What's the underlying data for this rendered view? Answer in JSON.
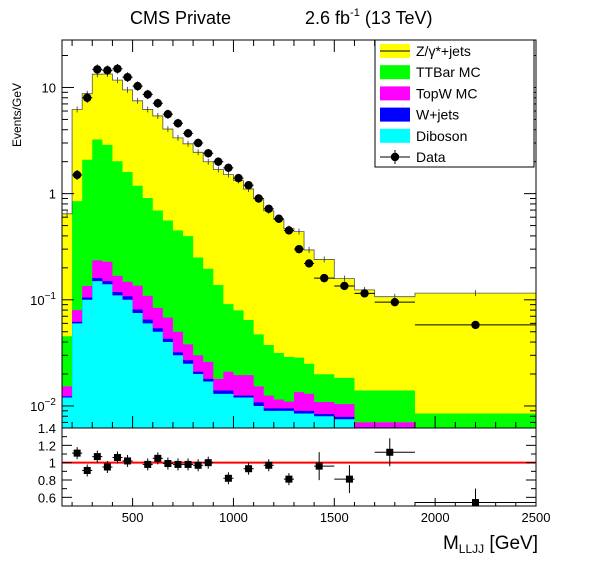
{
  "chart_data": {
    "type": "histogram-stack-with-ratio",
    "title": {
      "left": "CMS Private",
      "lumi_value": "2.6 fb",
      "lumi_exp": "-1",
      "energy": " (13 TeV)"
    },
    "ylabel": "Events/GeV",
    "xlabel": {
      "main": "M",
      "sub": "LLJJ",
      "unit": " [GeV]"
    },
    "x_range": [
      150,
      2500
    ],
    "x_ticks": [
      500,
      1000,
      1500,
      2000,
      2500
    ],
    "y_log_range": [
      0.0062,
      28
    ],
    "y_ticks": [
      {
        "value": 10,
        "label": "10"
      },
      {
        "value": 1,
        "label": "1"
      },
      {
        "value": 0.1,
        "label": "10",
        "exp": "−1"
      },
      {
        "value": 0.01,
        "label": "10",
        "exp": "−2"
      }
    ],
    "bin_edges": [
      150,
      200,
      250,
      300,
      350,
      400,
      450,
      500,
      550,
      600,
      650,
      700,
      750,
      800,
      850,
      900,
      950,
      1000,
      1050,
      1100,
      1150,
      1200,
      1250,
      1300,
      1350,
      1400,
      1500,
      1600,
      1700,
      1900,
      2500
    ],
    "stack_order_bottom_to_top": [
      "Diboson",
      "W+jets",
      "TopW MC",
      "TTBar MC",
      "Z/γ*+jets"
    ],
    "series": [
      {
        "name": "Diboson",
        "color": "#00ffff",
        "values": [
          0.012,
          0.06,
          0.1,
          0.15,
          0.14,
          0.11,
          0.1,
          0.075,
          0.06,
          0.05,
          0.04,
          0.03,
          0.025,
          0.02,
          0.017,
          0.013,
          0.013,
          0.012,
          0.012,
          0.01,
          0.009,
          0.009,
          0.009,
          0.0085,
          0.0085,
          0.008,
          0.0075,
          0.006,
          0.006,
          0.005
        ]
      },
      {
        "name": "W+jets",
        "color": "#0000ff",
        "values": [
          0.0003,
          0.002,
          0.005,
          0.01,
          0.01,
          0.008,
          0.008,
          0.006,
          0.005,
          0.004,
          0.003,
          0.002,
          0.002,
          0.001,
          0.001,
          0.001,
          0.001,
          0.0005,
          0.0005,
          0.0008,
          0.0005,
          0.0005,
          0.0005,
          0.0005,
          0.0005,
          0.0004,
          0.0004,
          0.0003,
          0.0003,
          0.0002
        ]
      },
      {
        "name": "TopW MC",
        "color": "#ff00ff",
        "values": [
          0.003,
          0.018,
          0.03,
          0.075,
          0.078,
          0.05,
          0.04,
          0.055,
          0.044,
          0.03,
          0.025,
          0.018,
          0.011,
          0.009,
          0.008,
          0.004,
          0.007,
          0.007,
          0.007,
          0.0045,
          0.003,
          0.002,
          0.0015,
          0.0045,
          0.004,
          0.0025,
          0.0025,
          0.0007,
          0.0007,
          0.0003
        ]
      },
      {
        "name": "TTBar MC",
        "color": "#00ff00",
        "values": [
          0.03,
          0.77,
          1.95,
          3.0,
          2.65,
          1.85,
          1.45,
          1.05,
          0.8,
          0.61,
          0.49,
          0.4,
          0.36,
          0.22,
          0.17,
          0.12,
          0.07,
          0.06,
          0.045,
          0.032,
          0.025,
          0.02,
          0.018,
          0.015,
          0.012,
          0.009,
          0.008,
          0.007,
          0.007,
          0.003
        ]
      },
      {
        "name": "Z/γ*+jets",
        "color": "#ffff00",
        "values": [
          0.6,
          5.35,
          6.65,
          10.1,
          10.5,
          9.7,
          7.9,
          6.3,
          5.3,
          4.7,
          3.5,
          2.9,
          2.55,
          2.2,
          1.8,
          1.55,
          1.42,
          1.25,
          1.04,
          0.85,
          0.65,
          0.54,
          0.44,
          0.41,
          0.27,
          0.22,
          0.14,
          0.11,
          0.093,
          0.107
        ]
      }
    ],
    "data": {
      "name": "Data",
      "x": [
        225,
        275,
        325,
        375,
        425,
        475,
        525,
        575,
        625,
        675,
        725,
        775,
        825,
        875,
        925,
        975,
        1025,
        1075,
        1125,
        1175,
        1225,
        1275,
        1325,
        1375,
        1450,
        1550,
        1650,
        1800,
        2200
      ],
      "y": [
        1.5,
        8.0,
        14.8,
        14.5,
        15.0,
        12.5,
        10.3,
        8.6,
        7.1,
        5.6,
        4.6,
        3.7,
        3.0,
        2.4,
        2.0,
        1.75,
        1.4,
        1.2,
        0.9,
        0.72,
        0.58,
        0.45,
        0.3,
        0.22,
        0.16,
        0.135,
        0.115,
        0.095,
        0.058
      ]
    },
    "legend": {
      "placement": "top-right",
      "entries": [
        {
          "label": "Z/γ*+jets",
          "color": "#ffff00",
          "style": "line"
        },
        {
          "label": "TTBar MC",
          "color": "#00ff00",
          "style": "box"
        },
        {
          "label": "TopW MC",
          "color": "#ff00ff",
          "style": "box"
        },
        {
          "label": "W+jets",
          "color": "#0000ff",
          "style": "box"
        },
        {
          "label": "Diboson",
          "color": "#00ffff",
          "style": "box"
        },
        {
          "label": "Data",
          "color": "#000000",
          "style": "marker"
        }
      ]
    },
    "ratio": {
      "y_range": [
        0.5,
        1.4
      ],
      "y_ticks": [
        {
          "value": 0.6,
          "label": "0.6"
        },
        {
          "value": 0.8,
          "label": "0.8"
        },
        {
          "value": 1.0,
          "label": "1"
        },
        {
          "value": 1.2,
          "label": "1.2"
        },
        {
          "value": 1.4,
          "label": "1.4"
        }
      ],
      "reference_line": 1.0,
      "reference_color": "#ff0000",
      "x": [
        225,
        275,
        325,
        375,
        425,
        475,
        575,
        625,
        675,
        725,
        775,
        825,
        875,
        975,
        1075,
        1175,
        1275,
        1425,
        1575,
        1775,
        2200
      ],
      "y": [
        1.11,
        0.91,
        1.07,
        0.95,
        1.06,
        1.02,
        0.98,
        1.05,
        0.99,
        0.98,
        0.98,
        0.97,
        1.0,
        0.82,
        0.93,
        0.97,
        0.81,
        0.96,
        0.81,
        1.12,
        0.54
      ]
    }
  }
}
